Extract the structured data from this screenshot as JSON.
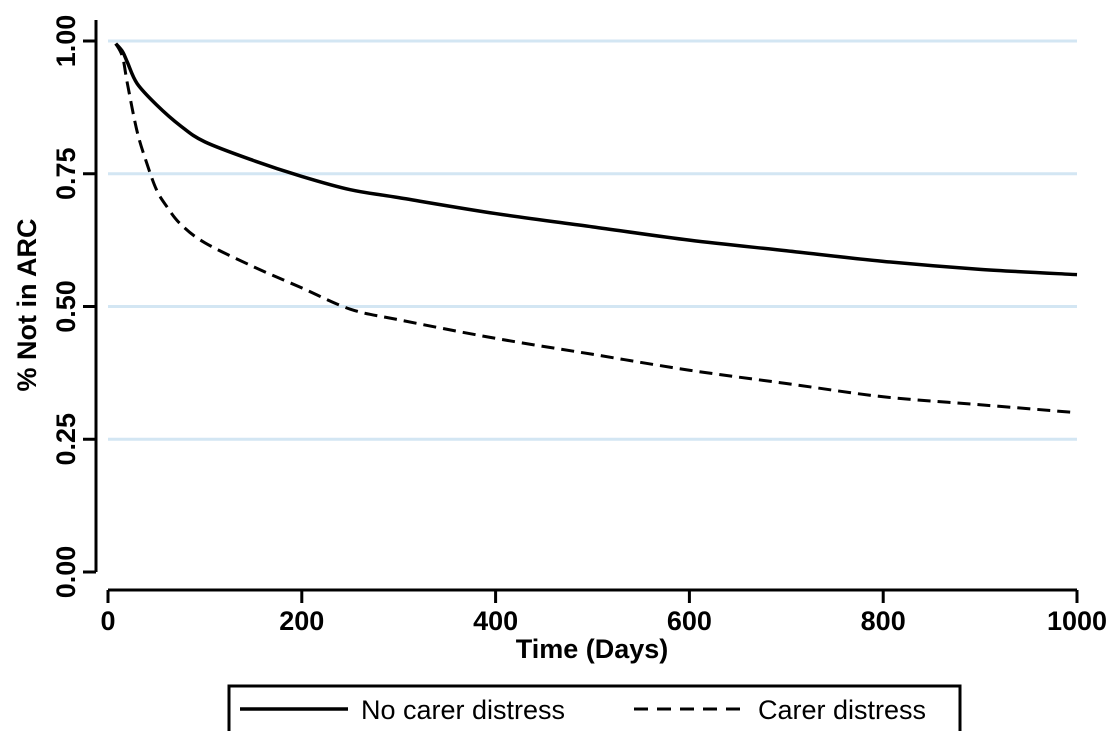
{
  "chart_data": {
    "type": "line",
    "xlabel": "Time (Days)",
    "ylabel": "% Not in ARC",
    "xlim": [
      0,
      1000
    ],
    "ylim": [
      0,
      1
    ],
    "x_ticks": [
      0,
      200,
      400,
      600,
      800,
      1000
    ],
    "x_tick_labels": [
      "0",
      "200",
      "400",
      "600",
      "800",
      "1000"
    ],
    "y_ticks": [
      0,
      0.25,
      0.5,
      0.75,
      1.0
    ],
    "y_tick_labels": [
      "0.00",
      "0.25",
      "0.50",
      "0.75",
      "1.00"
    ],
    "grid": "horizontal",
    "grid_color": "#d3e6f3",
    "legend_position": "bottom",
    "series": [
      {
        "name": "No carer distress",
        "style": "solid",
        "color": "#000000",
        "x": [
          8,
          15,
          20,
          30,
          50,
          75,
          100,
          150,
          200,
          250,
          300,
          400,
          500,
          600,
          700,
          800,
          900,
          1000
        ],
        "y": [
          0.995,
          0.98,
          0.96,
          0.92,
          0.88,
          0.84,
          0.81,
          0.775,
          0.745,
          0.72,
          0.705,
          0.675,
          0.65,
          0.625,
          0.605,
          0.585,
          0.57,
          0.56
        ]
      },
      {
        "name": "Carer distress",
        "style": "dashed",
        "color": "#000000",
        "x": [
          8,
          15,
          20,
          30,
          40,
          50,
          60,
          75,
          100,
          150,
          200,
          250,
          300,
          400,
          500,
          600,
          700,
          800,
          900,
          1000
        ],
        "y": [
          0.995,
          0.97,
          0.92,
          0.83,
          0.77,
          0.72,
          0.69,
          0.655,
          0.62,
          0.575,
          0.535,
          0.495,
          0.475,
          0.44,
          0.41,
          0.38,
          0.355,
          0.33,
          0.315,
          0.3
        ]
      }
    ]
  }
}
